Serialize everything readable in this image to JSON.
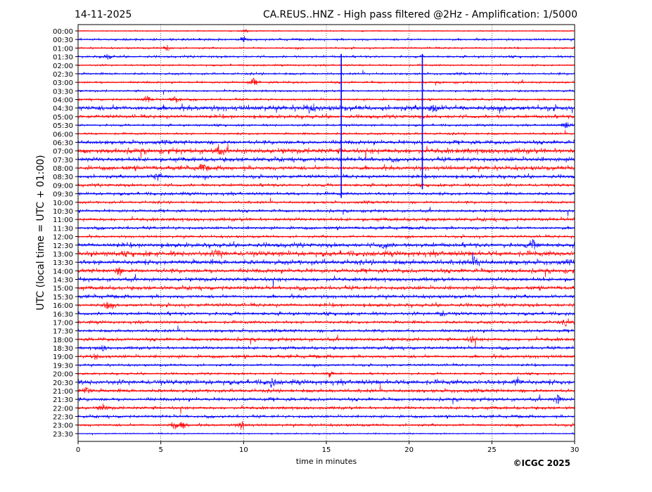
{
  "chart_data": {
    "type": "line",
    "subtype": "helicorder",
    "date": "14-11-2025",
    "title": "CA.REUS..HNZ - High pass filtered @2Hz - Amplification: 1/5000",
    "xlabel": "time in minutes",
    "ylabel": "UTC (local time = UTC + 01:00)",
    "xlim": [
      0,
      30
    ],
    "x_ticks": [
      "0",
      "5",
      "10",
      "15",
      "20",
      "25",
      "30"
    ],
    "x_grid": [
      5,
      10,
      15,
      20,
      25
    ],
    "row_labels": [
      "00:00",
      "00:30",
      "01:00",
      "01:30",
      "02:00",
      "02:30",
      "03:00",
      "03:30",
      "04:00",
      "04:30",
      "05:00",
      "05:30",
      "06:00",
      "06:30",
      "07:00",
      "07:30",
      "08:00",
      "08:30",
      "09:00",
      "09:30",
      "10:00",
      "10:30",
      "11:00",
      "11:30",
      "12:00",
      "12:30",
      "13:00",
      "13:30",
      "14:00",
      "14:30",
      "15:00",
      "15:30",
      "16:00",
      "16:30",
      "17:00",
      "17:30",
      "18:00",
      "18:30",
      "19:00",
      "19:30",
      "20:00",
      "20:30",
      "21:00",
      "21:30",
      "22:00",
      "22:30",
      "23:00",
      "23:30"
    ],
    "colors": [
      "#ff0000",
      "#0000ff"
    ],
    "noise_level": [
      0.5,
      1,
      0.8,
      1,
      0.8,
      1,
      1,
      0.9,
      1,
      2.4,
      1.6,
      1,
      1,
      1.8,
      2.4,
      2,
      2,
      1.6,
      1.4,
      1.4,
      1.2,
      1.3,
      1.6,
      1.4,
      1.2,
      2,
      2.4,
      2.2,
      2,
      1.8,
      1.8,
      1.6,
      1.6,
      1.5,
      1.4,
      1.4,
      1.6,
      1.4,
      1.5,
      1.1,
      1,
      2.2,
      1.6,
      1.6,
      1.4,
      1.3,
      1.2,
      0.6
    ],
    "events": [
      {
        "row": 0,
        "minute": 10.1,
        "amp": 3
      },
      {
        "row": 1,
        "minute": 10,
        "amp": 4
      },
      {
        "row": 2,
        "minute": 5.4,
        "amp": 4
      },
      {
        "row": 3,
        "minute": 1.8,
        "amp": 4
      },
      {
        "row": 6,
        "minute": 10.6,
        "amp": 5
      },
      {
        "row": 8,
        "minute": 4.2,
        "amp": 6
      },
      {
        "row": 8,
        "minute": 5.9,
        "amp": 6
      },
      {
        "row": 9,
        "minute": 14,
        "amp": 6
      },
      {
        "row": 9,
        "minute": 21.5,
        "amp": 7
      },
      {
        "row": 11,
        "minute": 29.5,
        "amp": 6
      },
      {
        "row": 14,
        "minute": 8.5,
        "amp": 6
      },
      {
        "row": 16,
        "minute": 7.5,
        "amp": 5
      },
      {
        "row": 17,
        "minute": 4.8,
        "amp": 7
      },
      {
        "row": 25,
        "minute": 18.5,
        "amp": 6
      },
      {
        "row": 25,
        "minute": 27.5,
        "amp": 7
      },
      {
        "row": 26,
        "minute": 8.5,
        "amp": 6
      },
      {
        "row": 27,
        "minute": 24,
        "amp": 8
      },
      {
        "row": 28,
        "minute": 2.5,
        "amp": 5
      },
      {
        "row": 32,
        "minute": 1.8,
        "amp": 5
      },
      {
        "row": 33,
        "minute": 22,
        "amp": 5
      },
      {
        "row": 34,
        "minute": 29.5,
        "amp": 5
      },
      {
        "row": 36,
        "minute": 23.8,
        "amp": 5
      },
      {
        "row": 37,
        "minute": 1.5,
        "amp": 4
      },
      {
        "row": 38,
        "minute": 1,
        "amp": 5
      },
      {
        "row": 40,
        "minute": 15.2,
        "amp": 5
      },
      {
        "row": 41,
        "minute": 11.7,
        "amp": 6
      },
      {
        "row": 41,
        "minute": 26.5,
        "amp": 6
      },
      {
        "row": 42,
        "minute": 0.5,
        "amp": 6
      },
      {
        "row": 43,
        "minute": 29,
        "amp": 7
      },
      {
        "row": 44,
        "minute": 1.5,
        "amp": 5
      },
      {
        "row": 46,
        "minute": 5.8,
        "amp": 7
      },
      {
        "row": 46,
        "minute": 9.9,
        "amp": 7
      },
      {
        "row": 46,
        "minute": 6.4,
        "amp": 5
      }
    ],
    "spikes": [
      {
        "minute": 15.9,
        "from_row": 4,
        "to_row": 19,
        "color": "#0000ff"
      },
      {
        "minute": 20.8,
        "from_row": 4,
        "to_row": 18,
        "color": "#0000ff"
      }
    ]
  },
  "footer": {
    "copyright": "©ICGC 2025"
  }
}
